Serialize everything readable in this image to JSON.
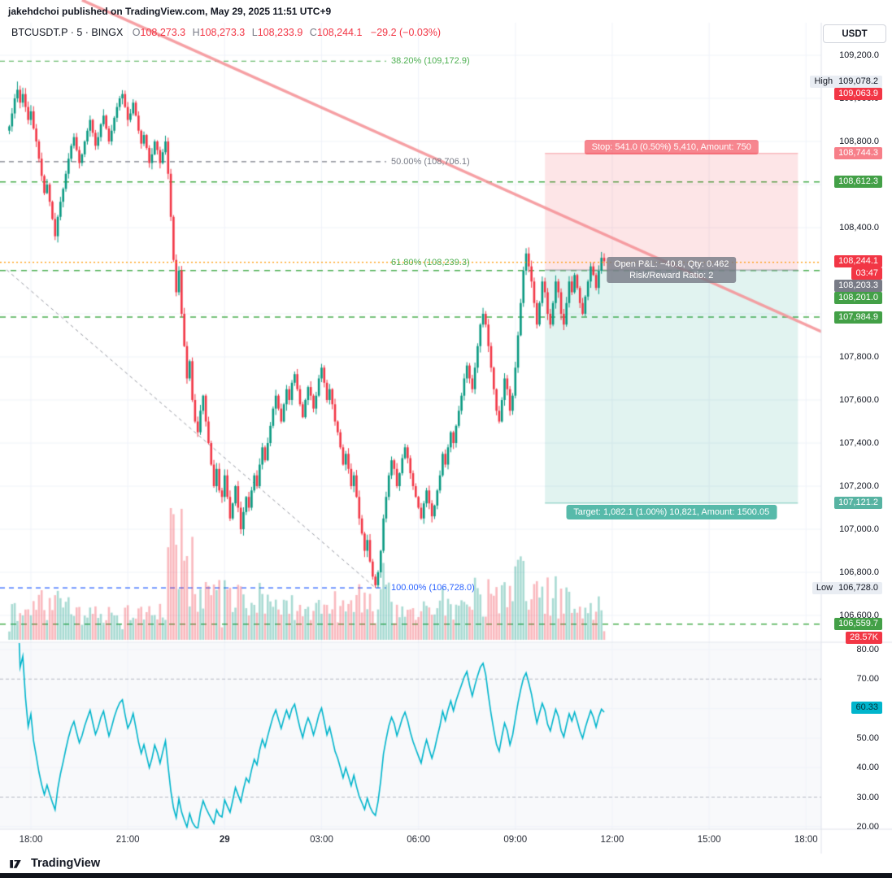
{
  "header": {
    "publish_line": "jakehdchoi published on TradingView.com, May 29, 2025 11:51 UTC+9"
  },
  "legend": {
    "title": "BTCUSDT.P · 5 · BINGX",
    "o_label": "O",
    "o": "108,273.3",
    "h_label": "H",
    "h": "108,273.3",
    "l_label": "L",
    "l": "108,233.9",
    "c_label": "C",
    "c": "108,244.1",
    "change": "−29.2 (−0.03%)"
  },
  "currency_button": "USDT",
  "footer": {
    "brand": "TradingView"
  },
  "colors": {
    "up": "#089981",
    "down": "#f23645",
    "vol_up": "rgba(8,153,129,0.35)",
    "vol_down": "rgba(242,54,69,0.35)",
    "grid": "#f0f3fa",
    "separator": "#e0e3eb",
    "green_line": "#4caf50",
    "fib_gray": "#787b86",
    "fib_blue": "#2962ff",
    "alert_orange": "#ff9800",
    "trend_pink": "rgba(244,143,148,0.85)",
    "entry_gray": "#9598a1",
    "rsi_pane_bg": "#f8f9fb"
  },
  "price_axis": {
    "ticks": [
      {
        "label": "109,200.0",
        "price": 109200
      },
      {
        "label": "109,000.0",
        "price": 109000
      },
      {
        "label": "108,800.0",
        "price": 108800
      },
      {
        "label": "108,400.0",
        "price": 108400
      },
      {
        "label": "107,800.0",
        "price": 107800
      },
      {
        "label": "107,600.0",
        "price": 107600
      },
      {
        "label": "107,400.0",
        "price": 107400
      },
      {
        "label": "107,200.0",
        "price": 107200
      },
      {
        "label": "107,000.0",
        "price": 107000
      },
      {
        "label": "106,800.0",
        "price": 106800
      },
      {
        "label": "106,600.0",
        "price": 106600
      }
    ],
    "badges": [
      {
        "style": "hl",
        "label": "High",
        "value": "109,078.2",
        "price": 109078.2
      },
      {
        "style": "red",
        "value": "109,063.9",
        "price": 109063.9
      },
      {
        "style": "pink",
        "value": "108,744.3",
        "price": 108744.3
      },
      {
        "style": "green",
        "value": "108,612.3",
        "price": 108612.3
      },
      {
        "style": "red",
        "value": "108,244.1",
        "price": 108244.1
      },
      {
        "style": "red",
        "value": "03:47",
        "price": 108244.1
      },
      {
        "style": "gray",
        "value": "108,203.3",
        "price": 108203.3
      },
      {
        "style": "green",
        "value": "108,201.0",
        "price": 108201.0
      },
      {
        "style": "green",
        "value": "107,984.9",
        "price": 107984.9
      },
      {
        "style": "teal",
        "value": "107,121.2",
        "price": 107121.2
      },
      {
        "style": "hl",
        "label": "Low",
        "value": "106,728.0",
        "price": 106728.0
      },
      {
        "style": "green",
        "value": "106,559.7",
        "price": 106559.7
      },
      {
        "style": "red",
        "value": "28.57K",
        "y": 784
      }
    ]
  },
  "time_axis": {
    "ticks": [
      {
        "label": "18:00",
        "idx": 8
      },
      {
        "label": "21:00",
        "idx": 44
      },
      {
        "label": "29",
        "idx": 80,
        "bold": true
      },
      {
        "label": "03:00",
        "idx": 116
      },
      {
        "label": "06:00",
        "idx": 152
      },
      {
        "label": "09:00",
        "idx": 188
      },
      {
        "label": "12:00",
        "idx": 224
      },
      {
        "label": "15:00",
        "idx": 260
      },
      {
        "label": "18:00",
        "idx": 296
      }
    ]
  },
  "levels": {
    "green_dashed_prices": [
      108612.3,
      108201.0,
      107984.9,
      106559.7
    ],
    "alert_dotted": {
      "price": 108239.3
    }
  },
  "fib": {
    "x_end_idx": 140,
    "levels": [
      {
        "label": "38.20% (109,172.9)",
        "price": 109172.9,
        "color": "#4caf50",
        "draw_line": true
      },
      {
        "label": "50.00% (108,706.1)",
        "price": 108706.1,
        "color": "#787b86",
        "draw_line": true
      },
      {
        "label": "61.80% (108,239.3)",
        "price": 108239.3,
        "color": "#4caf50",
        "draw_line": false
      },
      {
        "label": "100.00% (106,728.0)",
        "price": 106728.0,
        "color": "#2962ff",
        "draw_line": true
      }
    ],
    "trend_dash": {
      "i1": -1,
      "p1": 108204,
      "i2": 136,
      "p2": 106728
    }
  },
  "trend_line_pink": {
    "i1": 27,
    "p1": 109456,
    "i2": 303,
    "p2": 107910
  },
  "position_tool": {
    "type": "short",
    "entry_price": 108203.3,
    "stop_price": 108744.3,
    "target_price": 107121.2,
    "i1": 199,
    "i2": 293,
    "stop_label": "Stop: 541.0 (0.50%) 5,410, Amount: 750",
    "target_label": "Target: 1,082.1 (1.00%) 10,821, Amount: 1500.05",
    "pnl_lines": [
      "Open P&L: −40.8, Qty: 0.462",
      "Risk/Reward Ratio: 2"
    ]
  },
  "rsi": {
    "period": 14,
    "color": "#00b5cc",
    "current": 60.33,
    "current_label": "60.33",
    "ticks": [
      {
        "label": "80.00",
        "v": 80
      },
      {
        "label": "70.00",
        "v": 70,
        "dashed": true
      },
      {
        "label": "50.00",
        "v": 50
      },
      {
        "label": "40.00",
        "v": 40
      },
      {
        "label": "30.00",
        "v": 30,
        "dashed": true
      },
      {
        "label": "20.00",
        "v": 20
      }
    ]
  },
  "volume_badge": "28.57K",
  "chart_data": {
    "type": "candlestick",
    "symbol": "BTCUSDT.P",
    "exchange": "BINGX",
    "interval": "5m",
    "session_high": 109078.2,
    "session_low": 106728.0,
    "last_candle": {
      "open": 108273.3,
      "high": 108273.3,
      "low": 108233.9,
      "close": 108244.1,
      "change": -29.2,
      "change_pct": -0.03
    },
    "y_axis": {
      "min": 106600,
      "max": 109200,
      "step": 200
    },
    "x_ticks": [
      "18:00",
      "21:00",
      "29",
      "03:00",
      "06:00",
      "09:00",
      "12:00",
      "15:00",
      "18:00"
    ],
    "first_open": 108850,
    "closes": [
      108870,
      108930,
      109000,
      109040,
      108980,
      109020,
      108960,
      108900,
      108940,
      108860,
      108800,
      108720,
      108640,
      108560,
      108600,
      108520,
      108440,
      108360,
      108450,
      108520,
      108580,
      108650,
      108720,
      108780,
      108820,
      108760,
      108700,
      108740,
      108800,
      108850,
      108900,
      108840,
      108780,
      108820,
      108880,
      108920,
      108860,
      108800,
      108850,
      108910,
      108960,
      109000,
      109020,
      108960,
      108900,
      108930,
      108980,
      108920,
      108850,
      108790,
      108830,
      108770,
      108700,
      108740,
      108800,
      108760,
      108700,
      108750,
      108800,
      108650,
      108450,
      108250,
      108100,
      108200,
      108000,
      107850,
      107700,
      107780,
      107600,
      107500,
      107450,
      107550,
      107620,
      107500,
      107400,
      107300,
      107200,
      107280,
      107180,
      107150,
      107250,
      107150,
      107050,
      107120,
      107200,
      107100,
      107000,
      107080,
      107150,
      107100,
      107180,
      107250,
      107200,
      107300,
      107380,
      107320,
      107400,
      107480,
      107560,
      107620,
      107560,
      107500,
      107580,
      107650,
      107600,
      107680,
      107720,
      107650,
      107580,
      107520,
      107600,
      107660,
      107620,
      107560,
      107620,
      107700,
      107750,
      107680,
      107600,
      107650,
      107580,
      107500,
      107450,
      107380,
      107300,
      107350,
      107280,
      107200,
      107250,
      107150,
      107050,
      106980,
      106900,
      106950,
      106850,
      106780,
      106740,
      106800,
      106900,
      107050,
      107150,
      107250,
      107320,
      107280,
      107200,
      107260,
      107330,
      107380,
      107330,
      107260,
      107200,
      107150,
      107100,
      107050,
      107120,
      107180,
      107120,
      107060,
      107110,
      107180,
      107250,
      107350,
      107300,
      107380,
      107450,
      107400,
      107480,
      107550,
      107620,
      107700,
      107760,
      107700,
      107650,
      107750,
      107850,
      107950,
      108000,
      107950,
      107850,
      107750,
      107650,
      107550,
      107500,
      107600,
      107700,
      107650,
      107550,
      107620,
      107750,
      107900,
      108050,
      108200,
      108280,
      108220,
      108150,
      108050,
      107950,
      108050,
      108150,
      108100,
      108000,
      107950,
      108050,
      108150,
      108100,
      108000,
      107950,
      108050,
      108150,
      108100,
      108180,
      108120,
      108050,
      108000,
      108080,
      108150,
      108220,
      108180,
      108120,
      108200,
      108260,
      108244
    ]
  }
}
